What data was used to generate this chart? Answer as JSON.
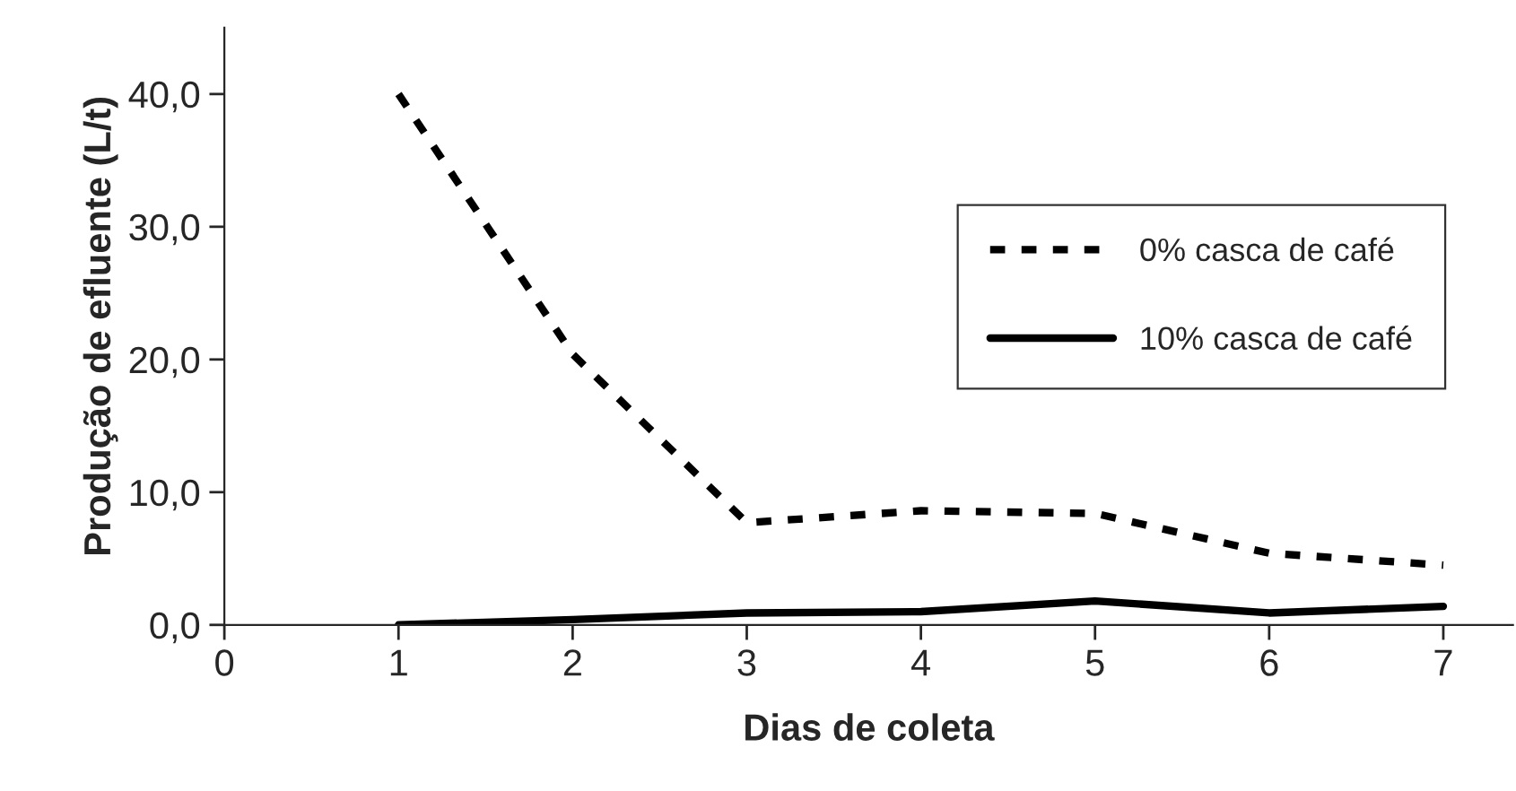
{
  "chart_data": {
    "type": "line",
    "xlabel": "Dias de coleta",
    "ylabel": "Produção de efluente (L/t)",
    "x": [
      1,
      2,
      3,
      4,
      5,
      6,
      7
    ],
    "series": [
      {
        "name": "0% casca de café",
        "color": "#000000",
        "line_style": "dashed",
        "values": [
          40,
          20.4,
          7.7,
          8.6,
          8.4,
          5.4,
          4.5
        ]
      },
      {
        "name": "10% casca de café",
        "color": "#000000",
        "line_style": "solid",
        "values": [
          0,
          0.4,
          0.9,
          1.0,
          1.8,
          0.9,
          1.4
        ]
      }
    ],
    "xlim": [
      0,
      7.4
    ],
    "xticks": [
      0,
      1,
      2,
      3,
      4,
      5,
      6,
      7
    ],
    "ylim": [
      0,
      45
    ],
    "yticks": [
      {
        "value": 0,
        "label": "0,0"
      },
      {
        "value": 10,
        "label": "10,0"
      },
      {
        "value": 20,
        "label": "20,0"
      },
      {
        "value": 30,
        "label": "30,0"
      },
      {
        "value": 40,
        "label": "40,0"
      }
    ],
    "legend": "top right",
    "grid": false,
    "marker": "none"
  }
}
